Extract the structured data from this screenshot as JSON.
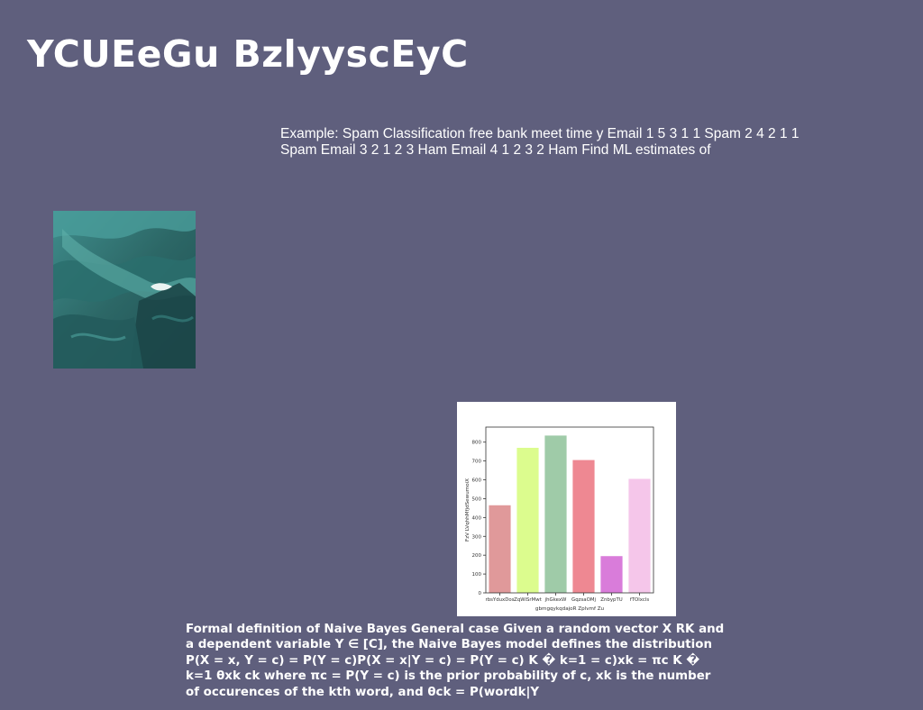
{
  "slide": {
    "title": "YCUEeGu BzlyyscEyC",
    "intro_text": "Example: Spam Classification free bank meet time y Email 1 5 3 1 1 Spam 2 4 2 1 1 Spam Email 3 2 1 2 3 Ham Email 4 1 2 3 2 Ham Find ML estimates of",
    "body_text": "Formal definition of Naive Bayes General case Given a random vector X RK and a dependent variable Y ∈ [C], the Naive Bayes model defines the distribution P(X = x, Y = c) = P(Y = c)P(X = x|Y = c) = P(Y = c) K � k=1 = c)xk = πc K � k=1 θxk ck where πc = P(Y = c) is the prior probability of c, xk is the number of occurences of the kth word, and θck = P(wordk|Y"
  },
  "colors": {
    "background": "#5f5f7d",
    "text": "#ffffff"
  },
  "chart_data": {
    "type": "bar",
    "categories": [
      "rbsYduxDos",
      "ZqWiSrMwt",
      "jhGkexW",
      "GqzsaOMj",
      "ZnbypTU",
      "fTOlxcls"
    ],
    "values": [
      465,
      770,
      835,
      705,
      195,
      605
    ],
    "colors": [
      "#e0999a",
      "#dcfc8e",
      "#9fcba8",
      "#ee8892",
      "#d97cda",
      "#f5c6ea"
    ],
    "xlabel": "gbmgqykqdajoR Zplvmf Zu",
    "ylabel": "FzV LVqhhMfjdSewumoiX",
    "ylim": [
      0,
      880
    ],
    "yticks": [
      0,
      100,
      200,
      300,
      400,
      500,
      600,
      700,
      800
    ],
    "grid": false
  }
}
